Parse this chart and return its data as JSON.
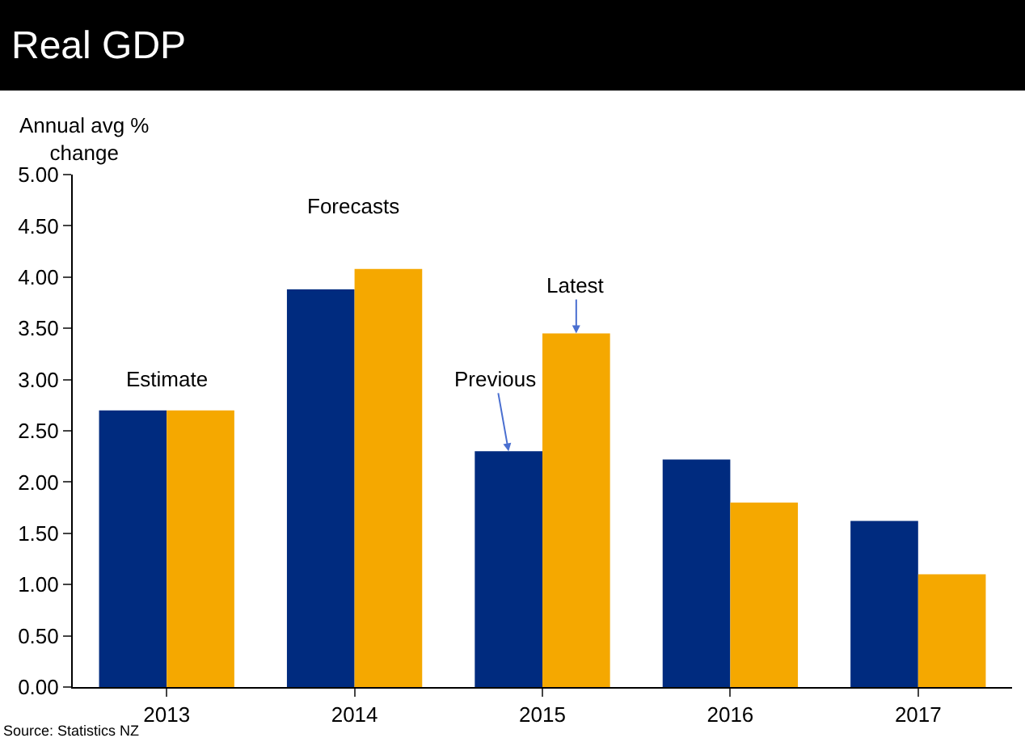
{
  "chart_data": {
    "type": "bar",
    "title": "Real GDP",
    "ylabel": "Annual avg % change",
    "categories": [
      "2013",
      "2014",
      "2015",
      "2016",
      "2017"
    ],
    "series": [
      {
        "color": "#002b7f",
        "values": [
          2.7,
          3.88,
          2.3,
          2.22,
          1.62
        ]
      },
      {
        "color": "#f5a800",
        "values": [
          2.7,
          4.08,
          3.45,
          1.8,
          1.1
        ]
      }
    ],
    "ylim": [
      0,
      5
    ],
    "yticks": [
      {
        "value": 0,
        "label": "0.00"
      },
      {
        "value": 0.5,
        "label": "0.50"
      },
      {
        "value": 1,
        "label": "1.00"
      },
      {
        "value": 1.5,
        "label": "1.50"
      },
      {
        "value": 2,
        "label": "2.00"
      },
      {
        "value": 2.5,
        "label": "2.50"
      },
      {
        "value": 3,
        "label": "3.00"
      },
      {
        "value": 3.5,
        "label": "3.50"
      },
      {
        "value": 4,
        "label": "4.00"
      },
      {
        "value": 4.5,
        "label": "4.50"
      },
      {
        "value": 5,
        "label": "5.00"
      }
    ],
    "annotations": [
      "Estimate",
      "Forecasts",
      {
        "text": "Previous",
        "x": "2015",
        "y": 2.3
      },
      {
        "text": "Latest",
        "x": "2015",
        "y": 3.45
      },
      "Source: Statistics NZ"
    ]
  }
}
